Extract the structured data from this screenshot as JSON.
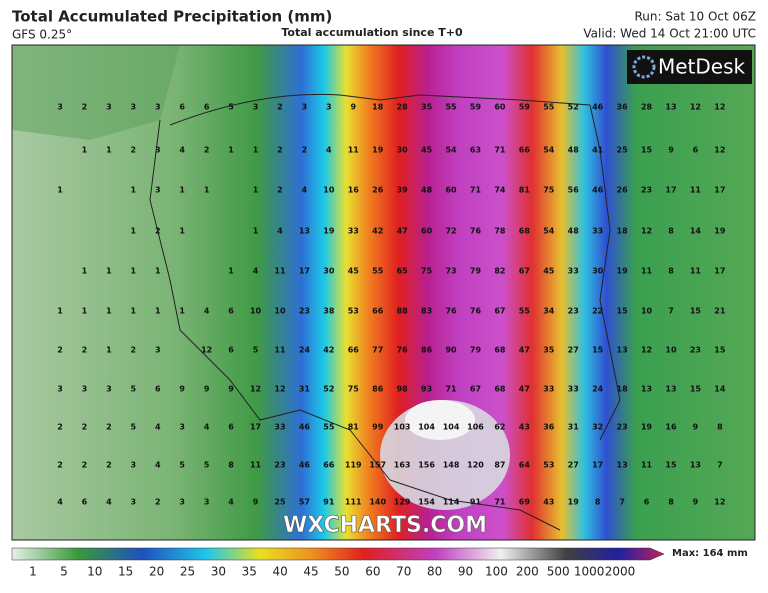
{
  "header": {
    "title": "Total Accumulated Precipitation (mm)",
    "model": "GFS 0.25°",
    "subtitle": "Total accumulation since T+0",
    "run": "Run: Sat 10 Oct 06Z",
    "valid": "Valid: Wed 14 Oct 21:00 UTC"
  },
  "logo": "MetDesk",
  "watermark": "WXCHARTS.COM",
  "grid": {
    "rows": [
      [
        3,
        2,
        3,
        3,
        3,
        6,
        6,
        5,
        3,
        2,
        3,
        3,
        9,
        18,
        28,
        35,
        55,
        59,
        60,
        59,
        55,
        52,
        46,
        36,
        28,
        13,
        12,
        12
      ],
      [
        null,
        1,
        1,
        2,
        3,
        4,
        2,
        1,
        1,
        2,
        2,
        4,
        11,
        19,
        30,
        45,
        54,
        63,
        71,
        66,
        54,
        48,
        41,
        25,
        15,
        9,
        6,
        12
      ],
      [
        1,
        null,
        null,
        1,
        3,
        1,
        1,
        null,
        1,
        2,
        4,
        10,
        16,
        26,
        39,
        48,
        60,
        71,
        74,
        81,
        75,
        56,
        46,
        26,
        23,
        17,
        11,
        17
      ],
      [
        null,
        null,
        null,
        1,
        2,
        1,
        null,
        null,
        1,
        4,
        13,
        19,
        33,
        42,
        47,
        60,
        72,
        76,
        78,
        68,
        54,
        48,
        33,
        18,
        12,
        8,
        14,
        19
      ],
      [
        null,
        1,
        1,
        1,
        1,
        null,
        null,
        1,
        4,
        11,
        17,
        30,
        45,
        55,
        65,
        75,
        73,
        79,
        82,
        67,
        45,
        33,
        30,
        19,
        11,
        8,
        11,
        17
      ],
      [
        1,
        1,
        1,
        1,
        1,
        1,
        4,
        6,
        10,
        10,
        23,
        38,
        53,
        66,
        88,
        83,
        76,
        76,
        67,
        55,
        34,
        23,
        22,
        15,
        10,
        7,
        15,
        21
      ],
      [
        2,
        2,
        1,
        2,
        3,
        null,
        12,
        6,
        5,
        11,
        24,
        42,
        66,
        77,
        76,
        86,
        90,
        79,
        68,
        47,
        35,
        27,
        15,
        13,
        12,
        10,
        23,
        15
      ],
      [
        3,
        3,
        3,
        5,
        6,
        9,
        9,
        9,
        12,
        12,
        31,
        52,
        75,
        86,
        98,
        93,
        71,
        67,
        68,
        47,
        33,
        33,
        24,
        18,
        13,
        13,
        15,
        14
      ],
      [
        2,
        2,
        2,
        5,
        4,
        3,
        4,
        6,
        17,
        33,
        46,
        55,
        81,
        99,
        103,
        104,
        104,
        106,
        62,
        43,
        36,
        31,
        32,
        23,
        19,
        16,
        9,
        8
      ],
      [
        2,
        2,
        2,
        3,
        4,
        5,
        5,
        8,
        11,
        23,
        46,
        66,
        119,
        157,
        163,
        156,
        148,
        120,
        87,
        64,
        53,
        27,
        17,
        13,
        11,
        15,
        13,
        7
      ],
      [
        4,
        6,
        4,
        3,
        2,
        3,
        3,
        4,
        9,
        25,
        57,
        91,
        111,
        140,
        129,
        154,
        114,
        91,
        71,
        69,
        43,
        19,
        8,
        7,
        6,
        8,
        9,
        12
      ]
    ]
  },
  "legend": {
    "labels": [
      1,
      5,
      10,
      15,
      20,
      25,
      30,
      35,
      40,
      45,
      50,
      60,
      70,
      80,
      90,
      100,
      200,
      500,
      1000,
      2000
    ],
    "max": "Max: 164 mm"
  }
}
